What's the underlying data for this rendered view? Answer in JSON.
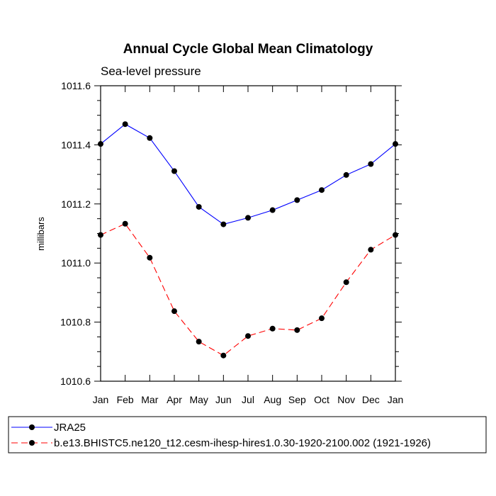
{
  "chart_data": {
    "type": "line",
    "title": "Annual Cycle Global Mean Climatology",
    "subtitle": "Sea-level pressure",
    "xlabel": "",
    "ylabel": "millibars",
    "categories": [
      "Jan",
      "Feb",
      "Mar",
      "Apr",
      "May",
      "Jun",
      "Jul",
      "Aug",
      "Sep",
      "Oct",
      "Nov",
      "Dec",
      "Jan"
    ],
    "ylim": [
      1010.6,
      1011.6
    ],
    "yticks": [
      1010.6,
      1010.8,
      1011.0,
      1011.2,
      1011.4,
      1011.6
    ],
    "ytick_labels": [
      "1010.6",
      "1010.8",
      "1011.0",
      "1011.2",
      "1011.4",
      "1011.6"
    ],
    "grid": false,
    "legend_position": "bottom",
    "series": [
      {
        "name": "JRA25",
        "color": "#0000ff",
        "dash": "solid",
        "values": [
          1011.403,
          1011.47,
          1011.423,
          1011.311,
          1011.19,
          1011.131,
          1011.153,
          1011.179,
          1011.213,
          1011.247,
          1011.298,
          1011.335,
          1011.403
        ]
      },
      {
        "name": "b.e13.BHISTC5.ne120_t12.cesm-ihesp-hires1.0.30-1920-2100.002 (1921-1926)",
        "color": "#ff0000",
        "dash": "dashed",
        "values": [
          1011.095,
          1011.133,
          1011.018,
          1010.837,
          1010.734,
          1010.687,
          1010.753,
          1010.778,
          1010.773,
          1010.813,
          1010.935,
          1011.045,
          1011.095
        ]
      }
    ]
  }
}
